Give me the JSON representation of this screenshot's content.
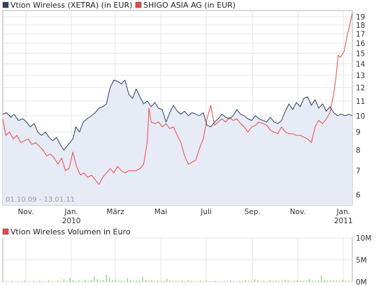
{
  "chart_data": [
    {
      "type": "line",
      "y_scale": "log",
      "ylim": [
        5.6,
        19.8
      ],
      "y_ticks": [
        6,
        7,
        8,
        9,
        10,
        11,
        12,
        13,
        14,
        15,
        16,
        17,
        18,
        19
      ],
      "y_tick_labels": [
        "6",
        "7",
        "8",
        "9",
        "10",
        "11",
        "12",
        "13",
        "14",
        "15",
        "16",
        "17",
        "18",
        "19"
      ],
      "x_range": [
        "2009-10-01",
        "2011-01-13"
      ],
      "x_ticks": [
        {
          "date": "2009-11-01",
          "label": "Nov.",
          "sublabel": ""
        },
        {
          "date": "2010-01-01",
          "label": "Jan.",
          "sublabel": "2010"
        },
        {
          "date": "2010-03-01",
          "label": "März",
          "sublabel": ""
        },
        {
          "date": "2010-05-01",
          "label": "Mai",
          "sublabel": ""
        },
        {
          "date": "2010-07-01",
          "label": "Juli",
          "sublabel": ""
        },
        {
          "date": "2010-09-01",
          "label": "Sep.",
          "sublabel": ""
        },
        {
          "date": "2010-11-01",
          "label": "Nov.",
          "sublabel": ""
        },
        {
          "date": "2011-01-01",
          "label": "Jan.",
          "sublabel": "2011"
        }
      ],
      "date_range_label": "01.10.09 - 13.01.11",
      "grid": true,
      "legend_position": "top-left",
      "series": [
        {
          "name": "Vtion Wireless (XETRA) (in EUR)",
          "color": "#2f3f5f",
          "fill": "#e7ebf6",
          "points": [
            [
              "2009-10-01",
              10.1
            ],
            [
              "2009-10-06",
              10.2
            ],
            [
              "2009-10-12",
              9.9
            ],
            [
              "2009-10-16",
              10.1
            ],
            [
              "2009-10-22",
              9.7
            ],
            [
              "2009-10-28",
              9.8
            ],
            [
              "2009-11-02",
              9.6
            ],
            [
              "2009-11-07",
              9.3
            ],
            [
              "2009-11-12",
              9.5
            ],
            [
              "2009-11-17",
              9.0
            ],
            [
              "2009-11-22",
              8.8
            ],
            [
              "2009-11-27",
              9.0
            ],
            [
              "2009-12-02",
              8.7
            ],
            [
              "2009-12-07",
              8.5
            ],
            [
              "2009-12-12",
              8.7
            ],
            [
              "2009-12-17",
              8.3
            ],
            [
              "2009-12-22",
              8.0
            ],
            [
              "2009-12-28",
              8.3
            ],
            [
              "2010-01-03",
              8.6
            ],
            [
              "2010-01-07",
              9.3
            ],
            [
              "2010-01-12",
              9.0
            ],
            [
              "2010-01-17",
              9.6
            ],
            [
              "2010-01-22",
              9.8
            ],
            [
              "2010-01-28",
              10.0
            ],
            [
              "2010-02-02",
              10.2
            ],
            [
              "2010-02-07",
              10.5
            ],
            [
              "2010-02-12",
              10.6
            ],
            [
              "2010-02-17",
              10.8
            ],
            [
              "2010-02-22",
              12.0
            ],
            [
              "2010-02-27",
              12.6
            ],
            [
              "2010-03-04",
              12.5
            ],
            [
              "2010-03-09",
              12.3
            ],
            [
              "2010-03-14",
              12.6
            ],
            [
              "2010-03-19",
              11.5
            ],
            [
              "2010-03-24",
              11.2
            ],
            [
              "2010-03-29",
              11.9
            ],
            [
              "2010-04-03",
              11.3
            ],
            [
              "2010-04-08",
              10.8
            ],
            [
              "2010-04-13",
              11.0
            ],
            [
              "2010-04-18",
              10.6
            ],
            [
              "2010-04-23",
              10.9
            ],
            [
              "2010-04-28",
              10.5
            ],
            [
              "2010-05-03",
              10.4
            ],
            [
              "2010-05-08",
              9.6
            ],
            [
              "2010-05-13",
              10.2
            ],
            [
              "2010-05-18",
              10.7
            ],
            [
              "2010-05-23",
              10.3
            ],
            [
              "2010-05-28",
              10.1
            ],
            [
              "2010-06-02",
              10.3
            ],
            [
              "2010-06-07",
              10.0
            ],
            [
              "2010-06-12",
              10.2
            ],
            [
              "2010-06-17",
              10.1
            ],
            [
              "2010-06-22",
              10.0
            ],
            [
              "2010-06-27",
              10.2
            ],
            [
              "2010-07-02",
              9.4
            ],
            [
              "2010-07-07",
              9.3
            ],
            [
              "2010-07-12",
              9.6
            ],
            [
              "2010-07-17",
              9.8
            ],
            [
              "2010-07-22",
              10.1
            ],
            [
              "2010-07-27",
              9.9
            ],
            [
              "2010-08-01",
              9.8
            ],
            [
              "2010-08-06",
              10.0
            ],
            [
              "2010-08-11",
              10.4
            ],
            [
              "2010-08-16",
              10.1
            ],
            [
              "2010-08-21",
              10.0
            ],
            [
              "2010-08-26",
              9.8
            ],
            [
              "2010-08-31",
              9.7
            ],
            [
              "2010-09-05",
              10.0
            ],
            [
              "2010-09-10",
              9.8
            ],
            [
              "2010-09-15",
              9.7
            ],
            [
              "2010-09-20",
              9.6
            ],
            [
              "2010-09-25",
              9.9
            ],
            [
              "2010-09-30",
              9.6
            ],
            [
              "2010-10-05",
              9.5
            ],
            [
              "2010-10-10",
              9.7
            ],
            [
              "2010-10-15",
              10.3
            ],
            [
              "2010-10-20",
              10.8
            ],
            [
              "2010-10-25",
              10.4
            ],
            [
              "2010-10-30",
              10.9
            ],
            [
              "2010-11-04",
              10.6
            ],
            [
              "2010-11-09",
              11.2
            ],
            [
              "2010-11-14",
              11.3
            ],
            [
              "2010-11-19",
              10.7
            ],
            [
              "2010-11-24",
              11.1
            ],
            [
              "2010-11-29",
              10.5
            ],
            [
              "2010-12-04",
              10.8
            ],
            [
              "2010-12-09",
              10.3
            ],
            [
              "2010-12-14",
              10.6
            ],
            [
              "2010-12-19",
              10.2
            ],
            [
              "2010-12-24",
              10.0
            ],
            [
              "2010-12-29",
              10.1
            ],
            [
              "2011-01-03",
              10.0
            ],
            [
              "2011-01-08",
              10.1
            ],
            [
              "2011-01-13",
              10.0
            ]
          ]
        },
        {
          "name": "SHIGO ASIA AG (in EUR)",
          "color": "#e84a4a",
          "points": [
            [
              "2009-10-01",
              9.8
            ],
            [
              "2009-10-05",
              8.8
            ],
            [
              "2009-10-10",
              9.0
            ],
            [
              "2009-10-15",
              8.6
            ],
            [
              "2009-10-20",
              8.8
            ],
            [
              "2009-10-25",
              8.4
            ],
            [
              "2009-10-30",
              8.5
            ],
            [
              "2009-11-04",
              8.6
            ],
            [
              "2009-11-09",
              8.3
            ],
            [
              "2009-11-14",
              8.4
            ],
            [
              "2009-11-19",
              8.2
            ],
            [
              "2009-11-24",
              8.0
            ],
            [
              "2009-11-29",
              7.7
            ],
            [
              "2009-12-04",
              7.8
            ],
            [
              "2009-12-09",
              7.6
            ],
            [
              "2009-12-14",
              7.3
            ],
            [
              "2009-12-19",
              7.6
            ],
            [
              "2009-12-24",
              7.0
            ],
            [
              "2009-12-29",
              7.1
            ],
            [
              "2010-01-03",
              7.9
            ],
            [
              "2010-01-08",
              7.2
            ],
            [
              "2010-01-13",
              6.8
            ],
            [
              "2010-01-18",
              6.9
            ],
            [
              "2010-01-23",
              6.7
            ],
            [
              "2010-01-28",
              6.8
            ],
            [
              "2010-02-02",
              6.6
            ],
            [
              "2010-02-07",
              6.4
            ],
            [
              "2010-02-12",
              6.7
            ],
            [
              "2010-02-17",
              6.9
            ],
            [
              "2010-02-22",
              7.1
            ],
            [
              "2010-02-27",
              6.9
            ],
            [
              "2010-03-04",
              7.2
            ],
            [
              "2010-03-09",
              7.0
            ],
            [
              "2010-03-14",
              6.9
            ],
            [
              "2010-03-19",
              7.0
            ],
            [
              "2010-03-24",
              7.0
            ],
            [
              "2010-03-29",
              7.0
            ],
            [
              "2010-04-03",
              7.1
            ],
            [
              "2010-04-08",
              7.3
            ],
            [
              "2010-04-13",
              8.5
            ],
            [
              "2010-04-15",
              10.5
            ],
            [
              "2010-04-18",
              9.6
            ],
            [
              "2010-04-23",
              9.5
            ],
            [
              "2010-04-28",
              9.6
            ],
            [
              "2010-05-03",
              9.3
            ],
            [
              "2010-05-08",
              9.5
            ],
            [
              "2010-05-13",
              9.2
            ],
            [
              "2010-05-18",
              9.3
            ],
            [
              "2010-05-23",
              8.8
            ],
            [
              "2010-05-28",
              8.4
            ],
            [
              "2010-06-02",
              7.7
            ],
            [
              "2010-06-07",
              7.3
            ],
            [
              "2010-06-12",
              7.4
            ],
            [
              "2010-06-17",
              7.5
            ],
            [
              "2010-06-22",
              8.1
            ],
            [
              "2010-06-27",
              8.6
            ],
            [
              "2010-07-02",
              9.8
            ],
            [
              "2010-07-07",
              10.7
            ],
            [
              "2010-07-12",
              9.4
            ],
            [
              "2010-07-17",
              9.6
            ],
            [
              "2010-07-22",
              9.8
            ],
            [
              "2010-07-27",
              9.6
            ],
            [
              "2010-08-01",
              9.9
            ],
            [
              "2010-08-06",
              9.7
            ],
            [
              "2010-08-11",
              9.8
            ],
            [
              "2010-08-16",
              9.5
            ],
            [
              "2010-08-21",
              9.3
            ],
            [
              "2010-08-26",
              9.0
            ],
            [
              "2010-08-31",
              9.3
            ],
            [
              "2010-09-05",
              9.4
            ],
            [
              "2010-09-10",
              9.6
            ],
            [
              "2010-09-15",
              9.5
            ],
            [
              "2010-09-20",
              9.4
            ],
            [
              "2010-09-25",
              9.1
            ],
            [
              "2010-09-30",
              9.0
            ],
            [
              "2010-10-05",
              8.9
            ],
            [
              "2010-10-10",
              9.3
            ],
            [
              "2010-10-15",
              9.0
            ],
            [
              "2010-10-20",
              8.9
            ],
            [
              "2010-10-25",
              8.9
            ],
            [
              "2010-10-30",
              8.8
            ],
            [
              "2010-11-04",
              8.8
            ],
            [
              "2010-11-09",
              8.7
            ],
            [
              "2010-11-14",
              8.6
            ],
            [
              "2010-11-19",
              8.4
            ],
            [
              "2010-11-24",
              9.3
            ],
            [
              "2010-11-29",
              9.7
            ],
            [
              "2010-12-04",
              9.5
            ],
            [
              "2010-12-09",
              9.8
            ],
            [
              "2010-12-14",
              10.2
            ],
            [
              "2010-12-19",
              11.5
            ],
            [
              "2010-12-22",
              12.8
            ],
            [
              "2010-12-25",
              14.8
            ],
            [
              "2010-12-28",
              14.6
            ],
            [
              "2011-01-02",
              15.2
            ],
            [
              "2011-01-06",
              16.8
            ],
            [
              "2011-01-10",
              18.2
            ],
            [
              "2011-01-13",
              19.5
            ]
          ]
        }
      ]
    },
    {
      "type": "bar",
      "legend": "Vtion Wireless Volumen in Euro",
      "legend_color": "#e84a4a",
      "bar_color": "#6fbf4a",
      "ylim": [
        0,
        10000000
      ],
      "y_tick_labels": [
        "10M",
        "5M",
        "0M"
      ],
      "y_ticks": [
        10000000,
        5000000,
        0
      ],
      "grid": true,
      "values": [
        120000,
        80000,
        210000,
        60000,
        150000,
        90000,
        300000,
        110000,
        70000,
        180000,
        95000,
        260000,
        140000,
        85000,
        400000,
        120000,
        90000,
        320000,
        150000,
        600000,
        250000,
        900000,
        380000,
        180000,
        270000,
        150000,
        480000,
        220000,
        350000,
        1200000,
        640000,
        280000,
        420000,
        1600000,
        950000,
        380000,
        520000,
        230000,
        310000,
        180000,
        760000,
        420000,
        260000,
        190000,
        350000,
        1100000,
        470000,
        240000,
        380000,
        160000,
        290000,
        150000,
        210000,
        680000,
        320000,
        180000,
        250000,
        140000,
        300000,
        170000,
        420000,
        230000,
        160000,
        120000,
        270000,
        190000,
        360000,
        150000,
        110000,
        240000,
        130000,
        90000,
        200000,
        140000,
        310000,
        170000,
        120000,
        260000,
        180000,
        450000,
        220000,
        160000,
        520000,
        300000,
        180000,
        240000,
        150000,
        380000,
        210000,
        290000,
        170000,
        260000,
        480000,
        330000,
        150000,
        210000,
        390000,
        240000,
        170000,
        310000,
        620000,
        280000,
        190000,
        360000,
        1400000,
        520000,
        250000,
        420000,
        330000,
        210000,
        180000,
        460000,
        300000,
        200000
      ]
    }
  ]
}
